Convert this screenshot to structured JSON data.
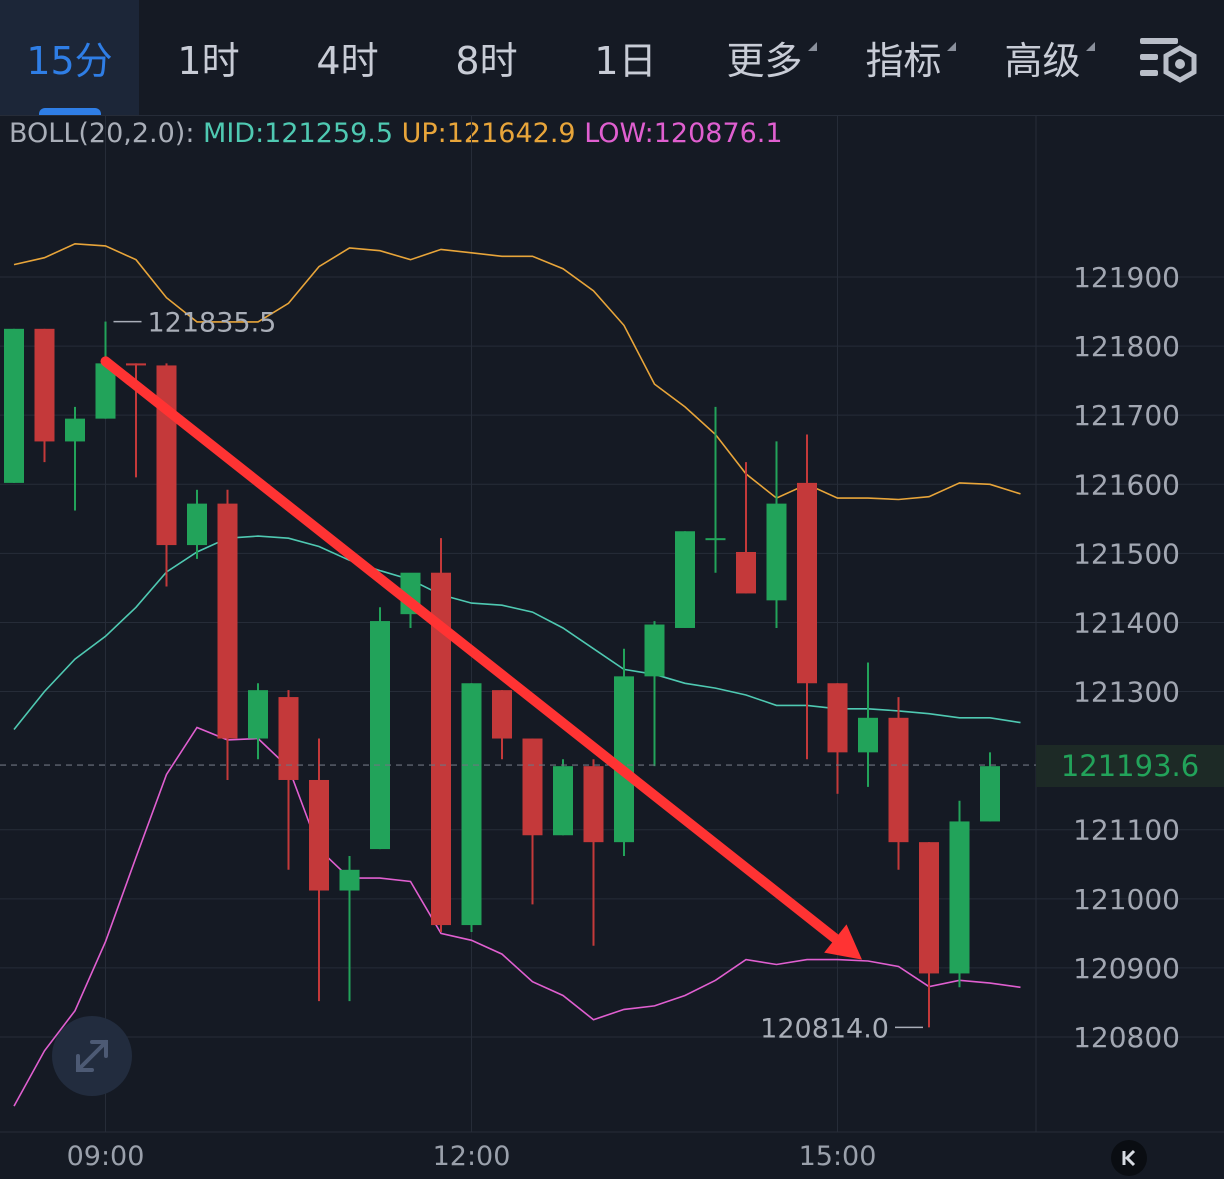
{
  "tabs": [
    {
      "label": "15分",
      "active": true
    },
    {
      "label": "1时"
    },
    {
      "label": "4时"
    },
    {
      "label": "8时"
    },
    {
      "label": "1日"
    },
    {
      "label": "更多",
      "dropdown": true
    },
    {
      "label": "指标",
      "dropdown": true
    },
    {
      "label": "高级",
      "dropdown": true
    }
  ],
  "icons": {
    "settings": "chart-settings-icon",
    "expand": "expand-arrows-icon",
    "collapse": "collapse-left-icon"
  },
  "indicator": {
    "name": "BOLL(20,2.0):",
    "mid": "MID:121259.5",
    "up": "UP:121642.9",
    "low": "LOW:120876.1"
  },
  "colors": {
    "up_candle": "#22a35a",
    "down_candle": "#c4393a",
    "mid_line": "#4fc9b2",
    "upper_line": "#e8a53a",
    "lower_line": "#e05fd0",
    "trend_arrow": "#ff3333",
    "accent": "#2f7ee6"
  },
  "current_price": "121193.6",
  "annotations": {
    "high": "121835.5",
    "low": "120814.0"
  },
  "chart_data": {
    "type": "candlestick",
    "interval": "15分",
    "y_ticks": [
      121900,
      121800,
      121700,
      121600,
      121500,
      121400,
      121300,
      121100,
      121000,
      120900,
      120800
    ],
    "y_tick_labels": [
      "121900",
      "121800",
      "121700",
      "121600",
      "121500",
      "121400",
      "121300",
      "121100",
      "121000",
      "120900",
      "120800"
    ],
    "ylim": [
      120700,
      122050
    ],
    "x_tick_labels": [
      "09:00",
      "12:00",
      "15:00"
    ],
    "x_tick_index": [
      3,
      15,
      27
    ],
    "candles": [
      {
        "o": 121602,
        "h": 121825,
        "l": 121602,
        "c": 121825
      },
      {
        "o": 121825,
        "h": 121825,
        "l": 121632,
        "c": 121662
      },
      {
        "o": 121662,
        "h": 121712,
        "l": 121562,
        "c": 121695
      },
      {
        "o": 121695,
        "h": 121835.5,
        "l": 121695,
        "c": 121775
      },
      {
        "o": 121775,
        "h": 121775,
        "l": 121610,
        "c": 121772
      },
      {
        "o": 121772,
        "h": 121775,
        "l": 121452,
        "c": 121512
      },
      {
        "o": 121512,
        "h": 121592,
        "l": 121492,
        "c": 121572
      },
      {
        "o": 121572,
        "h": 121592,
        "l": 121172,
        "c": 121232
      },
      {
        "o": 121232,
        "h": 121312,
        "l": 121202,
        "c": 121302
      },
      {
        "o": 121292,
        "h": 121302,
        "l": 121042,
        "c": 121172
      },
      {
        "o": 121172,
        "h": 121232,
        "l": 120852,
        "c": 121012
      },
      {
        "o": 121012,
        "h": 121062,
        "l": 120852,
        "c": 121042
      },
      {
        "o": 121072,
        "h": 121422,
        "l": 121072,
        "c": 121402
      },
      {
        "o": 121412,
        "h": 121462,
        "l": 121392,
        "c": 121472
      },
      {
        "o": 121472,
        "h": 121522,
        "l": 120952,
        "c": 120962
      },
      {
        "o": 120962,
        "h": 121312,
        "l": 120952,
        "c": 121312
      },
      {
        "o": 121302,
        "h": 121302,
        "l": 121202,
        "c": 121232
      },
      {
        "o": 121232,
        "h": 121232,
        "l": 120992,
        "c": 121092
      },
      {
        "o": 121092,
        "h": 121202,
        "l": 121092,
        "c": 121192
      },
      {
        "o": 121192,
        "h": 121202,
        "l": 120932,
        "c": 121082
      },
      {
        "o": 121082,
        "h": 121362,
        "l": 121062,
        "c": 121322
      },
      {
        "o": 121322,
        "h": 121402,
        "l": 121192,
        "c": 121397
      },
      {
        "o": 121392,
        "h": 121532,
        "l": 121392,
        "c": 121532
      },
      {
        "o": 121522,
        "h": 121712,
        "l": 121472,
        "c": 121522
      },
      {
        "o": 121502,
        "h": 121632,
        "l": 121442,
        "c": 121442
      },
      {
        "o": 121432,
        "h": 121662,
        "l": 121392,
        "c": 121572
      },
      {
        "o": 121602,
        "h": 121672,
        "l": 121202,
        "c": 121312
      },
      {
        "o": 121312,
        "h": 121312,
        "l": 121152,
        "c": 121212
      },
      {
        "o": 121212,
        "h": 121342,
        "l": 121162,
        "c": 121262
      },
      {
        "o": 121262,
        "h": 121292,
        "l": 121042,
        "c": 121082
      },
      {
        "o": 121082,
        "h": 121082,
        "l": 120814,
        "c": 120892
      },
      {
        "o": 120892,
        "h": 121142,
        "l": 120872,
        "c": 121112
      },
      {
        "o": 121112,
        "h": 121212,
        "l": 121112,
        "c": 121192
      }
    ],
    "boll_upper_points": [
      {
        "x": 0,
        "y": 121918
      },
      {
        "x": 1,
        "y": 121928
      },
      {
        "x": 2,
        "y": 121948
      },
      {
        "x": 3,
        "y": 121945
      },
      {
        "x": 4,
        "y": 121925
      },
      {
        "x": 5,
        "y": 121870
      },
      {
        "x": 6,
        "y": 121835
      },
      {
        "x": 7,
        "y": 121835
      },
      {
        "x": 8,
        "y": 121835
      },
      {
        "x": 9,
        "y": 121862
      },
      {
        "x": 10,
        "y": 121915
      },
      {
        "x": 11,
        "y": 121942
      },
      {
        "x": 12,
        "y": 121938
      },
      {
        "x": 13,
        "y": 121925
      },
      {
        "x": 14,
        "y": 121940
      },
      {
        "x": 15,
        "y": 121935
      },
      {
        "x": 16,
        "y": 121930
      },
      {
        "x": 17,
        "y": 121930
      },
      {
        "x": 18,
        "y": 121912
      },
      {
        "x": 19,
        "y": 121880
      },
      {
        "x": 20,
        "y": 121830
      },
      {
        "x": 21,
        "y": 121745
      },
      {
        "x": 22,
        "y": 121712
      },
      {
        "x": 23,
        "y": 121672
      },
      {
        "x": 24,
        "y": 121615
      },
      {
        "x": 25,
        "y": 121580
      },
      {
        "x": 26,
        "y": 121600
      },
      {
        "x": 27,
        "y": 121580
      },
      {
        "x": 28,
        "y": 121580
      },
      {
        "x": 29,
        "y": 121578
      },
      {
        "x": 30,
        "y": 121582
      },
      {
        "x": 31,
        "y": 121602
      },
      {
        "x": 32,
        "y": 121600
      },
      {
        "x": 33,
        "y": 121586
      }
    ],
    "boll_mid_points": [
      {
        "x": 0,
        "y": 121245
      },
      {
        "x": 1,
        "y": 121300
      },
      {
        "x": 2,
        "y": 121347
      },
      {
        "x": 3,
        "y": 121380
      },
      {
        "x": 4,
        "y": 121422
      },
      {
        "x": 5,
        "y": 121473
      },
      {
        "x": 6,
        "y": 121502
      },
      {
        "x": 7,
        "y": 121522
      },
      {
        "x": 8,
        "y": 121525
      },
      {
        "x": 9,
        "y": 121522
      },
      {
        "x": 10,
        "y": 121510
      },
      {
        "x": 11,
        "y": 121490
      },
      {
        "x": 12,
        "y": 121475
      },
      {
        "x": 13,
        "y": 121462
      },
      {
        "x": 14,
        "y": 121440
      },
      {
        "x": 15,
        "y": 121428
      },
      {
        "x": 16,
        "y": 121425
      },
      {
        "x": 17,
        "y": 121415
      },
      {
        "x": 18,
        "y": 121392
      },
      {
        "x": 19,
        "y": 121362
      },
      {
        "x": 20,
        "y": 121332
      },
      {
        "x": 21,
        "y": 121325
      },
      {
        "x": 22,
        "y": 121312
      },
      {
        "x": 23,
        "y": 121305
      },
      {
        "x": 24,
        "y": 121295
      },
      {
        "x": 25,
        "y": 121280
      },
      {
        "x": 26,
        "y": 121280
      },
      {
        "x": 27,
        "y": 121275
      },
      {
        "x": 28,
        "y": 121275
      },
      {
        "x": 29,
        "y": 121272
      },
      {
        "x": 30,
        "y": 121268
      },
      {
        "x": 31,
        "y": 121262
      },
      {
        "x": 32,
        "y": 121262
      },
      {
        "x": 33,
        "y": 121255
      }
    ],
    "boll_lower_points": [
      {
        "x": 0,
        "y": 120700
      },
      {
        "x": 1,
        "y": 120780
      },
      {
        "x": 2,
        "y": 120838
      },
      {
        "x": 3,
        "y": 120938
      },
      {
        "x": 4,
        "y": 121060
      },
      {
        "x": 5,
        "y": 121180
      },
      {
        "x": 6,
        "y": 121248
      },
      {
        "x": 7,
        "y": 121230
      },
      {
        "x": 8,
        "y": 121232
      },
      {
        "x": 9,
        "y": 121190
      },
      {
        "x": 10,
        "y": 121072
      },
      {
        "x": 11,
        "y": 121030
      },
      {
        "x": 12,
        "y": 121030
      },
      {
        "x": 13,
        "y": 121025
      },
      {
        "x": 14,
        "y": 120950
      },
      {
        "x": 15,
        "y": 120940
      },
      {
        "x": 16,
        "y": 120920
      },
      {
        "x": 17,
        "y": 120880
      },
      {
        "x": 18,
        "y": 120860
      },
      {
        "x": 19,
        "y": 120825
      },
      {
        "x": 20,
        "y": 120840
      },
      {
        "x": 21,
        "y": 120845
      },
      {
        "x": 22,
        "y": 120860
      },
      {
        "x": 23,
        "y": 120882
      },
      {
        "x": 24,
        "y": 120912
      },
      {
        "x": 25,
        "y": 120905
      },
      {
        "x": 26,
        "y": 120912
      },
      {
        "x": 27,
        "y": 120912
      },
      {
        "x": 28,
        "y": 120910
      },
      {
        "x": 29,
        "y": 120902
      },
      {
        "x": 30,
        "y": 120873
      },
      {
        "x": 31,
        "y": 120882
      },
      {
        "x": 32,
        "y": 120878
      },
      {
        "x": 33,
        "y": 120872
      }
    ],
    "trend_arrow": {
      "from_index": 3,
      "from_price": 121778,
      "to_index": 28,
      "to_price": 120912
    }
  }
}
